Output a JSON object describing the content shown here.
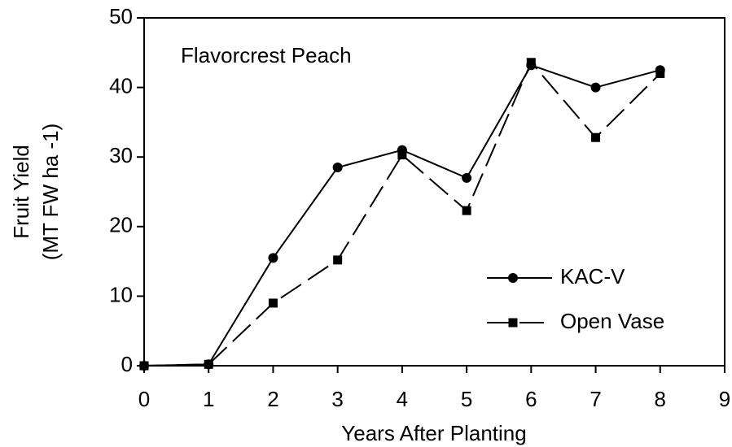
{
  "chart_data": {
    "type": "line",
    "annotation": "Flavorcrest Peach",
    "xlabel": "Years After Planting",
    "ylabel": [
      "Fruit Yield",
      "(MT FW ha -1)"
    ],
    "x": [
      0,
      1,
      2,
      3,
      4,
      5,
      6,
      7,
      8
    ],
    "series": [
      {
        "name": "KAC-V",
        "color": "#000000",
        "marker": "circle",
        "linestyle": "solid",
        "values": [
          0,
          0.2,
          15.5,
          28.5,
          31,
          27,
          43.2,
          40,
          42.5
        ]
      },
      {
        "name": "Open Vase",
        "color": "#000000",
        "marker": "square",
        "linestyle": "dashed",
        "values": [
          0,
          0.2,
          9,
          15.2,
          30.3,
          22.3,
          43.6,
          32.8,
          42
        ]
      }
    ],
    "xlim": [
      0,
      9
    ],
    "xticks": [
      0,
      1,
      2,
      3,
      4,
      5,
      6,
      7,
      8,
      9
    ],
    "ylim": [
      0,
      50
    ],
    "yticks": [
      0,
      10,
      20,
      30,
      40,
      50
    ],
    "grid": false,
    "legend": "lower right"
  }
}
